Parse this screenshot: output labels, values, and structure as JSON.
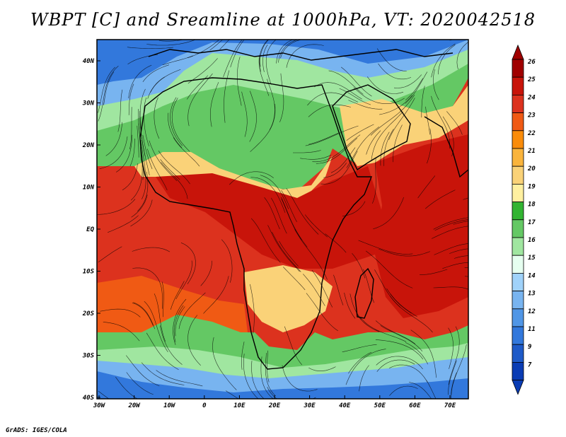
{
  "title": "WBPT [C] and Sreamline at 1000hPa, VT: 2020042518",
  "credit": "GrADS: IGES/COLA",
  "lat_labels": [
    "40N",
    "30N",
    "20N",
    "10N",
    "EQ",
    "10S",
    "20S",
    "30S",
    "40S"
  ],
  "lon_labels": [
    "30W",
    "20W",
    "10W",
    "0",
    "10E",
    "20E",
    "30E",
    "40E",
    "50E",
    "60E",
    "70E"
  ],
  "colorbar": {
    "labels": [
      "26",
      "25",
      "24",
      "23",
      "22",
      "21",
      "20",
      "19",
      "18",
      "17",
      "16",
      "15",
      "14",
      "13",
      "12",
      "11",
      "9",
      "7"
    ],
    "colors": [
      "#a00000",
      "#c8140a",
      "#dc321e",
      "#f05a14",
      "#fa8c0a",
      "#fab43c",
      "#fad278",
      "#fff0a0",
      "#32b432",
      "#64c864",
      "#a0e6a0",
      "#e6fff0",
      "#a0d2fa",
      "#78b4f0",
      "#5096e6",
      "#3278dc",
      "#1e5ac8",
      "#0a3cb4"
    ],
    "arrows": [
      "red",
      "blue"
    ]
  },
  "map_colors": {
    "warm_core": "#c8140a",
    "warm": "#dc321e",
    "orange": "#f05a14",
    "yellow": "#fad278",
    "green": "#64c864",
    "light_green": "#a0e6a0",
    "blue": "#78b4f0",
    "dark_blue": "#3278dc",
    "coast": "#000000",
    "streamline": "#000000"
  }
}
